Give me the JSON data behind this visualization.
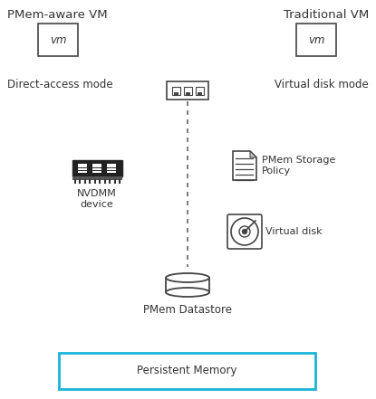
{
  "bg_color": "#ffffff",
  "text_color": "#333333",
  "border_color": "#444444",
  "blue_color": "#1ab4d7",
  "dashed_color": "#666666",
  "title_pmem_aware": "PMem-aware VM",
  "title_traditional": "Traditional VM",
  "label_direct_access": "Direct-access mode",
  "label_virtual_disk_mode": "Virtual disk mode",
  "label_nvdmm": "NVDMM\ndevice",
  "label_pmem_storage": "PMem Storage\nPolicy",
  "label_virtual_disk": "Virtual disk",
  "label_pmem_datastore": "PMem Datastore",
  "label_persistent_memory": "Persistent Memory",
  "fs_title": 9.5,
  "fs_label": 8.5,
  "fs_small": 8.0,
  "fig_w": 4.15,
  "fig_h": 4.41,
  "dpi": 100
}
